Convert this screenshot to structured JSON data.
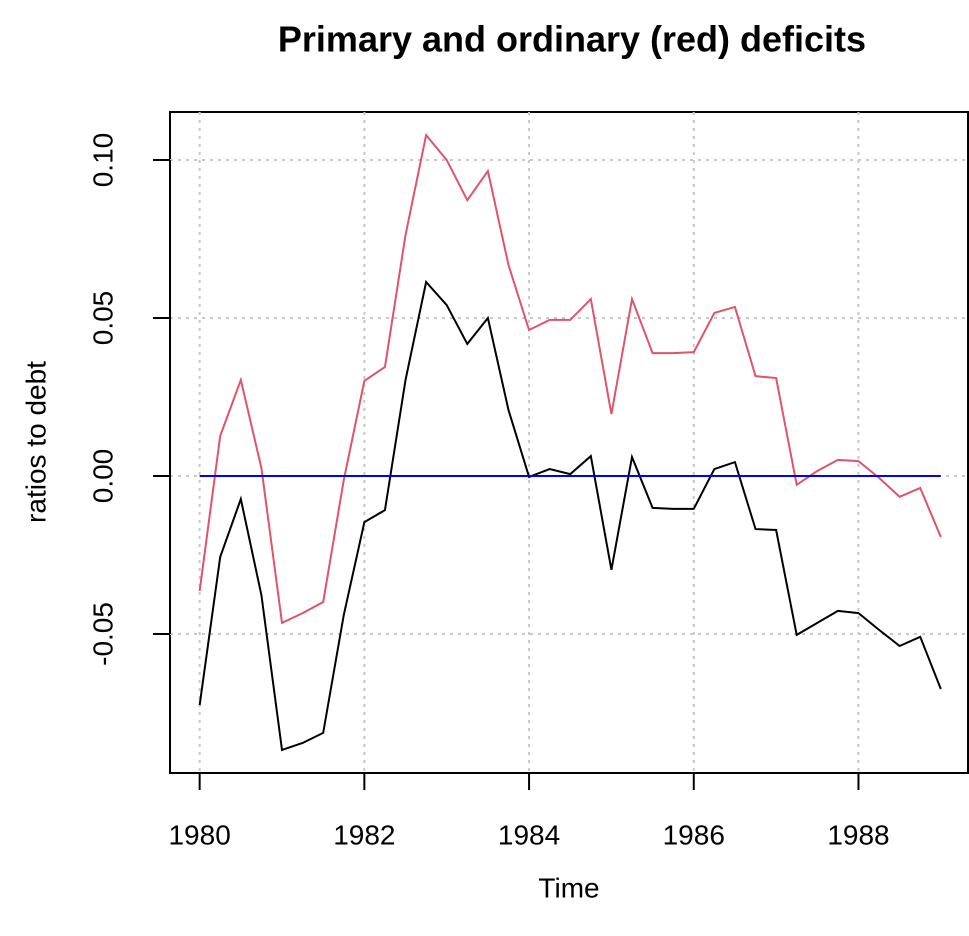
{
  "chart_data": {
    "type": "line",
    "title": "Primary and ordinary (red) deficits",
    "xlabel": "Time",
    "ylabel": "ratios to debt",
    "x": [
      1980,
      1980.25,
      1980.5,
      1980.75,
      1981,
      1981.25,
      1981.5,
      1981.75,
      1982,
      1982.25,
      1982.5,
      1982.75,
      1983,
      1983.25,
      1983.5,
      1983.75,
      1984,
      1984.25,
      1984.5,
      1984.75,
      1985,
      1985.25,
      1985.5,
      1985.75,
      1986,
      1986.25,
      1986.5,
      1986.75,
      1987,
      1987.25,
      1987.5,
      1987.75,
      1988,
      1988.25,
      1988.5,
      1988.75,
      1989
    ],
    "series": [
      {
        "color": "#000000",
        "values": [
          -0.0725,
          -0.0256,
          -0.0073,
          -0.0377,
          -0.0867,
          -0.0845,
          -0.0813,
          -0.044,
          -0.0146,
          -0.0108,
          0.0304,
          0.0614,
          0.0541,
          0.0418,
          0.05,
          0.0209,
          -0.0003,
          0.0022,
          0.0006,
          0.0063,
          -0.0297,
          0.006,
          -0.0101,
          -0.0104,
          -0.0104,
          0.0022,
          0.0044,
          -0.0168,
          -0.0171,
          -0.0503,
          -0.0465,
          -0.0427,
          -0.0434,
          -0.0487,
          -0.0538,
          -0.0509,
          -0.0674
        ]
      },
      {
        "color": "#df536b",
        "values": [
          -0.0364,
          0.0127,
          0.0304,
          0.0025,
          -0.0465,
          -0.0434,
          -0.0399,
          -0.0013,
          0.0301,
          0.0345,
          0.0763,
          0.1079,
          0.1,
          0.0873,
          0.0965,
          0.0668,
          0.0462,
          0.0494,
          0.0494,
          0.056,
          0.0196,
          0.056,
          0.0389,
          0.0389,
          0.0392,
          0.0516,
          0.0535,
          0.0316,
          0.031,
          -0.0028,
          0.0016,
          0.0051,
          0.0047,
          -0.0006,
          -0.0066,
          -0.0038,
          -0.0193
        ]
      },
      {
        "color": "#0000ff",
        "values": [
          0,
          0,
          0,
          0,
          0,
          0,
          0,
          0,
          0,
          0,
          0,
          0,
          0,
          0,
          0,
          0,
          0,
          0,
          0,
          0,
          0,
          0,
          0,
          0,
          0,
          0,
          0,
          0,
          0,
          0,
          0,
          0,
          0,
          0,
          0,
          0,
          0
        ]
      }
    ],
    "xlim": [
      1979.64,
      1989.33
    ],
    "xticks": [
      1980,
      1982,
      1984,
      1986,
      1988
    ],
    "ylim": [
      -0.094,
      0.1152
    ],
    "yticks": [
      -0.05,
      {
        "value": 0,
        "label": "0.00"
      },
      0.05,
      {
        "value": 0.1,
        "label": "0.10"
      }
    ],
    "grid": true
  }
}
